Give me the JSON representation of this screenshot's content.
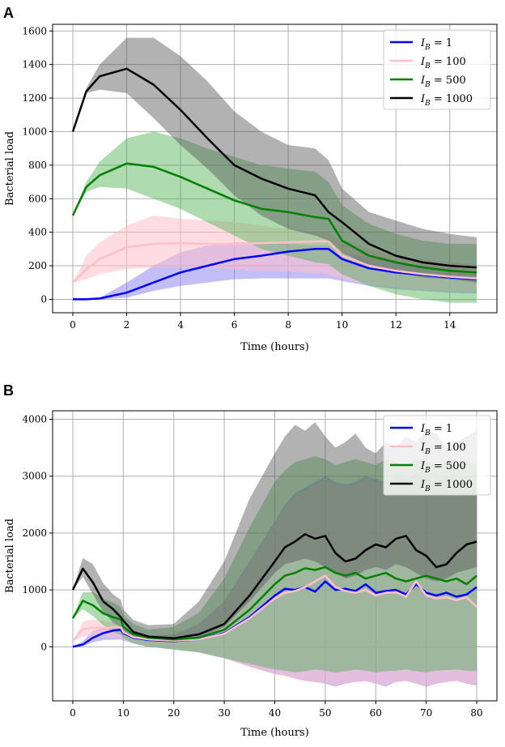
{
  "chart_data": [
    {
      "panel": "A",
      "type": "line",
      "xlabel": "Time (hours)",
      "ylabel": "Bacterial load",
      "xlim": [
        -0.75,
        15.75
      ],
      "ylim": [
        -80,
        1640
      ],
      "xticks": [
        0,
        2,
        4,
        6,
        8,
        10,
        12,
        14
      ],
      "yticks": [
        0,
        200,
        400,
        600,
        800,
        1000,
        1200,
        1400,
        1600
      ],
      "legend_position": "top-right",
      "series": [
        {
          "name": "I_B = 1",
          "label_main": "I",
          "label_sub": "B",
          "label_value": " = 1",
          "color": "#0000ff",
          "band_color": "#7b6cf0",
          "x": [
            0,
            0.5,
            1,
            2,
            3,
            4,
            5,
            6,
            7,
            8,
            9,
            9.5,
            10,
            11,
            12,
            13,
            14,
            15
          ],
          "mean": [
            0,
            0,
            5,
            40,
            100,
            160,
            200,
            240,
            260,
            285,
            300,
            300,
            240,
            185,
            160,
            145,
            130,
            120
          ],
          "lower": [
            0,
            0,
            0,
            10,
            50,
            80,
            100,
            120,
            125,
            125,
            125,
            125,
            110,
            80,
            60,
            50,
            40,
            35
          ],
          "upper": [
            0,
            0,
            10,
            100,
            200,
            280,
            320,
            340,
            340,
            330,
            320,
            320,
            280,
            250,
            220,
            200,
            185,
            170
          ]
        },
        {
          "name": "I_B = 100",
          "label_main": "I",
          "label_sub": "B",
          "label_value": " = 100",
          "color": "#ffc0cb",
          "band_color": "#ffc0cb",
          "x": [
            0,
            0.5,
            1,
            2,
            3,
            4,
            5,
            6,
            7,
            8,
            9,
            9.5,
            10,
            11,
            12,
            13,
            14,
            15
          ],
          "mean": [
            100,
            180,
            240,
            310,
            330,
            335,
            330,
            330,
            335,
            340,
            345,
            345,
            260,
            200,
            170,
            150,
            135,
            125
          ],
          "lower": [
            100,
            120,
            150,
            180,
            190,
            190,
            190,
            180,
            170,
            165,
            155,
            150,
            120,
            90,
            70,
            55,
            50,
            45
          ],
          "upper": [
            100,
            260,
            340,
            440,
            500,
            480,
            470,
            460,
            440,
            420,
            400,
            390,
            350,
            300,
            260,
            240,
            220,
            210
          ]
        },
        {
          "name": "I_B = 500",
          "label_main": "I",
          "label_sub": "B",
          "label_value": " = 500",
          "color": "#008000",
          "band_color": "#4caf50",
          "x": [
            0,
            0.5,
            1,
            2,
            3,
            4,
            5,
            6,
            7,
            8,
            9,
            9.5,
            10,
            11,
            12,
            13,
            14,
            15
          ],
          "mean": [
            500,
            670,
            740,
            810,
            790,
            730,
            660,
            590,
            540,
            520,
            490,
            480,
            350,
            260,
            220,
            190,
            170,
            160
          ],
          "lower": [
            500,
            640,
            670,
            660,
            600,
            540,
            460,
            380,
            300,
            260,
            220,
            210,
            150,
            80,
            30,
            0,
            -20,
            -20
          ],
          "upper": [
            500,
            700,
            820,
            960,
            1000,
            960,
            900,
            850,
            800,
            780,
            760,
            700,
            560,
            450,
            390,
            350,
            330,
            330
          ]
        },
        {
          "name": "I_B = 1000",
          "label_main": "I",
          "label_sub": "B",
          "label_value": " = 1000",
          "color": "#000000",
          "band_color": "#555555",
          "x": [
            0,
            0.5,
            1,
            2,
            3,
            4,
            5,
            6,
            7,
            8,
            9,
            9.5,
            10,
            11,
            12,
            13,
            14,
            15
          ],
          "mean": [
            1000,
            1240,
            1330,
            1375,
            1280,
            1130,
            960,
            800,
            720,
            660,
            620,
            520,
            460,
            330,
            260,
            220,
            200,
            190
          ],
          "lower": [
            1000,
            1230,
            1250,
            1230,
            1080,
            920,
            780,
            620,
            500,
            420,
            380,
            350,
            280,
            200,
            160,
            130,
            120,
            100
          ],
          "upper": [
            1000,
            1260,
            1400,
            1560,
            1560,
            1450,
            1300,
            1120,
            1000,
            920,
            900,
            830,
            660,
            520,
            470,
            420,
            390,
            370
          ]
        }
      ]
    },
    {
      "panel": "B",
      "type": "line",
      "xlabel": "Time (hours)",
      "ylabel": "Bacterial load",
      "xlim": [
        -4,
        84
      ],
      "ylim": [
        -950,
        4150
      ],
      "xticks": [
        0,
        10,
        20,
        30,
        40,
        50,
        60,
        70,
        80
      ],
      "yticks": [
        0,
        1000,
        2000,
        3000,
        4000
      ],
      "legend_position": "top-right",
      "series": [
        {
          "name": "I_B = 1",
          "label_main": "I",
          "label_sub": "B",
          "label_value": " = 1",
          "color": "#0000ff",
          "band_color": "#7b6cf0",
          "x": [
            0,
            2,
            4,
            6,
            8,
            9.5,
            10,
            12,
            15,
            20,
            25,
            30,
            35,
            40,
            42,
            44,
            46,
            48,
            50,
            52,
            54,
            56,
            58,
            60,
            62,
            64,
            66,
            68,
            70,
            72,
            74,
            76,
            78,
            80
          ],
          "mean": [
            0,
            40,
            160,
            240,
            285,
            300,
            240,
            160,
            120,
            100,
            130,
            240,
            520,
            900,
            1020,
            1000,
            1050,
            970,
            1150,
            1000,
            1020,
            980,
            1100,
            950,
            980,
            1000,
            920,
            1100,
            950,
            900,
            950,
            880,
            920,
            1050
          ],
          "lower": [
            0,
            10,
            80,
            120,
            125,
            125,
            110,
            60,
            0,
            -50,
            -100,
            -200,
            -350,
            -480,
            -500,
            -560,
            -600,
            -620,
            -650,
            -700,
            -650,
            -620,
            -600,
            -650,
            -700,
            -620,
            -600,
            -650,
            -700,
            -650,
            -620,
            -600,
            -650,
            -680
          ],
          "upper": [
            0,
            100,
            280,
            340,
            330,
            320,
            280,
            220,
            180,
            220,
            400,
            800,
            1500,
            2200,
            2500,
            2700,
            2800,
            2900,
            3000,
            2900,
            2850,
            2900,
            3000,
            2950,
            2900,
            3000,
            2950,
            3050,
            2950,
            2900,
            3000,
            2950,
            3000,
            3000
          ]
        },
        {
          "name": "I_B = 100",
          "label_main": "I",
          "label_sub": "B",
          "label_value": " = 100",
          "color": "#ffc0cb",
          "band_color": "#ffc0cb",
          "x": [
            0,
            2,
            4,
            6,
            8,
            9.5,
            10,
            12,
            15,
            20,
            25,
            30,
            35,
            40,
            42,
            44,
            46,
            48,
            50,
            52,
            54,
            56,
            58,
            60,
            62,
            64,
            66,
            68,
            70,
            72,
            74,
            76,
            78,
            80
          ],
          "mean": [
            100,
            310,
            335,
            330,
            340,
            345,
            260,
            170,
            130,
            110,
            130,
            230,
            500,
            850,
            950,
            980,
            1050,
            1150,
            1250,
            1050,
            980,
            950,
            1000,
            900,
            950,
            960,
            880,
            1150,
            900,
            850,
            870,
            820,
            870,
            700
          ],
          "lower": [
            100,
            180,
            190,
            180,
            165,
            150,
            120,
            70,
            10,
            -50,
            -100,
            -200,
            -350,
            -480,
            -520,
            -560,
            -600,
            -620,
            -650,
            -680,
            -640,
            -620,
            -610,
            -650,
            -680,
            -620,
            -610,
            -640,
            -680,
            -640,
            -620,
            -600,
            -640,
            -660
          ],
          "upper": [
            100,
            440,
            480,
            460,
            420,
            390,
            350,
            260,
            200,
            220,
            390,
            780,
            1450,
            2150,
            2450,
            2650,
            2750,
            2850,
            2950,
            2850,
            2800,
            2850,
            2950,
            2900,
            2850,
            2950,
            2900,
            3000,
            2900,
            2850,
            2950,
            2900,
            2950,
            2950
          ]
        },
        {
          "name": "I_B = 500",
          "label_main": "I",
          "label_sub": "B",
          "label_value": " = 500",
          "color": "#008000",
          "band_color": "#4caf50",
          "x": [
            0,
            2,
            4,
            6,
            8,
            9.5,
            10,
            12,
            15,
            20,
            25,
            30,
            35,
            40,
            42,
            44,
            46,
            48,
            50,
            52,
            54,
            56,
            58,
            60,
            62,
            64,
            66,
            68,
            70,
            72,
            74,
            76,
            78,
            80
          ],
          "mean": [
            500,
            810,
            730,
            590,
            520,
            480,
            350,
            220,
            160,
            130,
            160,
            300,
            650,
            1100,
            1250,
            1300,
            1380,
            1350,
            1400,
            1300,
            1250,
            1300,
            1200,
            1250,
            1300,
            1200,
            1150,
            1200,
            1250,
            1200,
            1150,
            1200,
            1100,
            1250
          ],
          "lower": [
            500,
            660,
            540,
            380,
            260,
            210,
            150,
            60,
            0,
            -50,
            -100,
            -200,
            -300,
            -400,
            -420,
            -450,
            -430,
            -400,
            -420,
            -450,
            -430,
            -400,
            -420,
            -450,
            -430,
            -420,
            -400,
            -430,
            -450,
            -420,
            -410,
            -400,
            -420,
            -430
          ],
          "upper": [
            500,
            960,
            960,
            850,
            780,
            700,
            560,
            400,
            300,
            350,
            600,
            1200,
            2100,
            2900,
            3100,
            3250,
            3300,
            3350,
            3300,
            3200,
            3250,
            3300,
            3250,
            3200,
            3300,
            3250,
            3200,
            3300,
            3250,
            3200,
            3250,
            3200,
            3250,
            3200
          ]
        },
        {
          "name": "I_B = 1000",
          "label_main": "I",
          "label_sub": "B",
          "label_value": " = 1000",
          "color": "#000000",
          "band_color": "#555555",
          "x": [
            0,
            2,
            4,
            6,
            8,
            9.5,
            10,
            12,
            15,
            20,
            25,
            30,
            35,
            40,
            42,
            44,
            46,
            48,
            50,
            52,
            54,
            56,
            58,
            60,
            62,
            64,
            66,
            68,
            70,
            72,
            74,
            76,
            78,
            80
          ],
          "mean": [
            1000,
            1375,
            1130,
            800,
            660,
            520,
            460,
            260,
            180,
            150,
            220,
            400,
            900,
            1500,
            1750,
            1850,
            1980,
            1900,
            1950,
            1650,
            1500,
            1550,
            1700,
            1800,
            1750,
            1900,
            1950,
            1700,
            1600,
            1400,
            1450,
            1650,
            1800,
            1850
          ],
          "lower": [
            1000,
            1230,
            920,
            620,
            420,
            350,
            280,
            160,
            100,
            80,
            150,
            350,
            800,
            1300,
            1450,
            1500,
            1550,
            1500,
            1400,
            1300,
            1200,
            1250,
            1350,
            1400,
            1350,
            1450,
            1400,
            1300,
            1200,
            1150,
            1200,
            1300,
            1350,
            1400
          ],
          "upper": [
            1000,
            1560,
            1450,
            1120,
            920,
            830,
            660,
            470,
            380,
            400,
            800,
            1500,
            2600,
            3400,
            3700,
            3900,
            3800,
            3950,
            3700,
            3500,
            3600,
            3750,
            3500,
            3400,
            3600,
            3500,
            3700,
            3600,
            3800,
            3750,
            3500,
            3600,
            3700,
            3800
          ]
        }
      ]
    }
  ]
}
